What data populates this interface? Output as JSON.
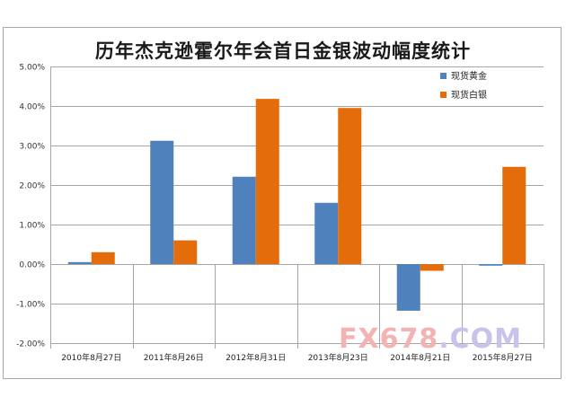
{
  "chart_data": {
    "type": "bar",
    "title": "历年杰克逊霍尔年会首日金银波动幅度统计",
    "categories": [
      "2010年8月27日",
      "2011年8月26日",
      "2012年8月31日",
      "2013年8月23日",
      "2014年8月21日",
      "2015年8月27日"
    ],
    "series": [
      {
        "name": "现货黄金",
        "color": "#4f81bd",
        "values": [
          0.05,
          3.12,
          2.21,
          1.55,
          -1.18,
          -0.04
        ]
      },
      {
        "name": "现货白银",
        "color": "#e46c0a",
        "values": [
          0.3,
          0.6,
          4.18,
          3.95,
          -0.17,
          2.46
        ]
      }
    ],
    "yticks": [
      "5.00%",
      "4.00%",
      "3.00%",
      "2.00%",
      "1.00%",
      "0.00%",
      "-1.00%",
      "-2.00%"
    ],
    "ylim": [
      -2,
      5
    ],
    "grid": true,
    "legend_position": "top-right"
  },
  "watermark": {
    "prefix": "FX678",
    "suffix": ".COM"
  }
}
